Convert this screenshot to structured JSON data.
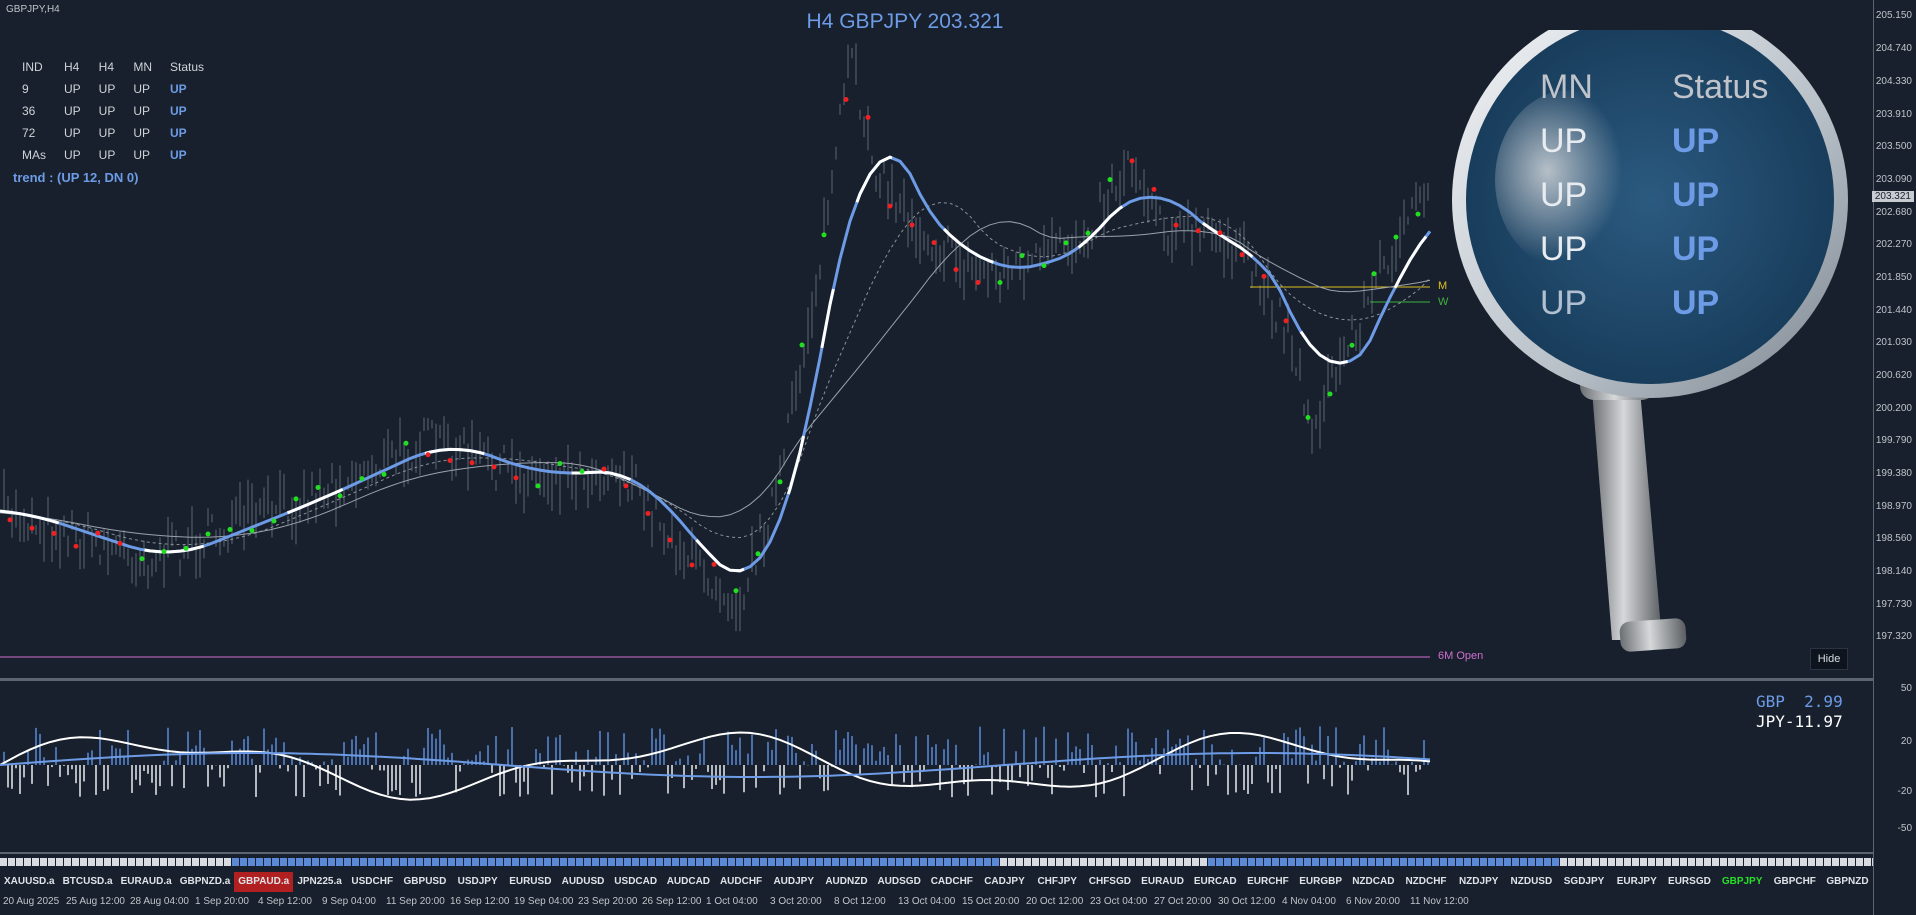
{
  "window": {
    "symbol_label": "GBPJPY,H4",
    "title": "H4 GBPJPY 203.321"
  },
  "indicator_table": {
    "headers": [
      "IND",
      "H4",
      "H4",
      "MN",
      "Status"
    ],
    "rows": [
      [
        "9",
        "UP",
        "UP",
        "UP",
        "UP"
      ],
      [
        "36",
        "UP",
        "UP",
        "UP",
        "UP"
      ],
      [
        "72",
        "UP",
        "UP",
        "UP",
        "UP"
      ],
      [
        "MAs",
        "UP",
        "UP",
        "UP",
        "UP"
      ]
    ]
  },
  "trend_text": "trend : (UP 12, DN 0)",
  "price_axis": {
    "ticks": [
      "205.150",
      "204.740",
      "204.330",
      "203.910",
      "203.500",
      "203.090",
      "202.680",
      "202.270",
      "201.850",
      "201.440",
      "201.030",
      "200.620",
      "200.200",
      "199.790",
      "199.380",
      "198.970",
      "198.560",
      "198.140",
      "197.730",
      "197.320"
    ],
    "current": "203.321"
  },
  "osc_axis": {
    "ticks": [
      "50",
      "20",
      "-20",
      "-50"
    ]
  },
  "levels": {
    "six_month_open": "6M Open",
    "m_label": "M",
    "w_label": "W"
  },
  "hide_button": "Hide",
  "currency_strength": {
    "gbp": "GBP  2.99",
    "jpy": "JPY-11.97"
  },
  "magnifier": {
    "headers": [
      "MN",
      "Status"
    ],
    "mn_values": [
      "UP",
      "UP",
      "UP",
      "UP"
    ],
    "status_values": [
      "UP",
      "UP",
      "UP",
      "UP"
    ]
  },
  "symbols": [
    "XAUUSD.a",
    "BTCUSD.a",
    "EURAUD.a",
    "GBPNZD.a",
    "GBPAUD.a",
    "JPN225.a",
    "USDCHF",
    "GBPUSD",
    "USDJPY",
    "EURUSD",
    "AUDUSD",
    "USDCAD",
    "AUDCAD",
    "AUDCHF",
    "AUDJPY",
    "AUDNZD",
    "AUDSGD",
    "CADCHF",
    "CADJPY",
    "CHFJPY",
    "CHFSGD",
    "EURAUD",
    "EURCAD",
    "EURCHF",
    "EURGBP",
    "NZDCAD",
    "NZDCHF",
    "NZDJPY",
    "NZDUSD",
    "SGDJPY",
    "EURJPY",
    "EURSGD",
    "GBPJPY",
    "GBPCHF",
    "GBPNZD"
  ],
  "active_symbol": "GBPAUD.a",
  "current_symbol": "GBPJPY",
  "dates": [
    "20 Aug 2025",
    "25 Aug 12:00",
    "28 Aug 04:00",
    "1 Sep 20:00",
    "4 Sep 12:00",
    "9 Sep 04:00",
    "11 Sep 20:00",
    "16 Sep 12:00",
    "19 Sep 04:00",
    "23 Sep 20:00",
    "26 Sep 12:00",
    "1 Oct 04:00",
    "3 Oct 20:00",
    "8 Oct 12:00",
    "13 Oct 04:00",
    "15 Oct 20:00",
    "20 Oct 12:00",
    "23 Oct 04:00",
    "27 Oct 20:00",
    "30 Oct 12:00",
    "4 Nov 04:00",
    "6 Nov 20:00",
    "11 Nov 12:00"
  ],
  "colors": {
    "background": "#17202c",
    "accent": "#6d9be6",
    "bull": "#22dd22",
    "bear": "#ee2222",
    "six_month_open": "#d070d0",
    "candle": "#3a4350"
  }
}
